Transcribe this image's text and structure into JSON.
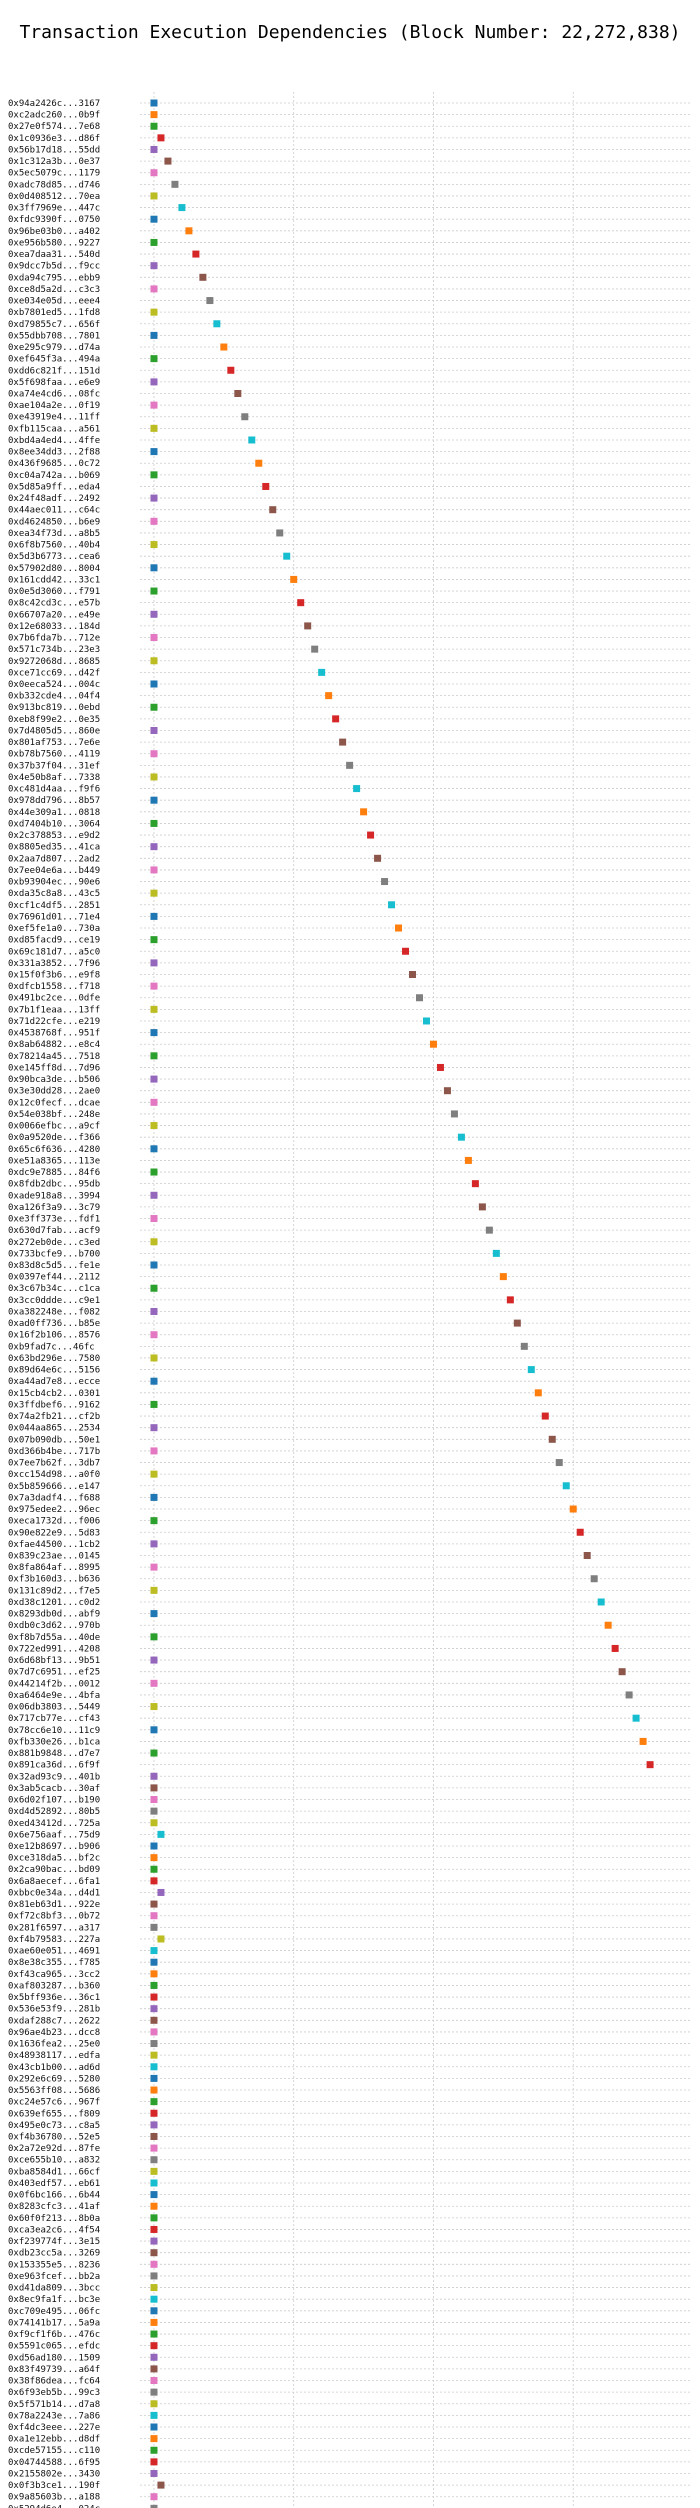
{
  "chart_data": {
    "type": "scatter",
    "title": "Transaction Execution Dependencies (Block Number: 22,272,838)",
    "xlabel": "",
    "ylabel": "",
    "xlim": [
      -2,
      77
    ],
    "xticks": [
      0,
      20,
      40,
      60
    ],
    "grid": true,
    "legend": "none",
    "colors": [
      "#1f77b4",
      "#ff7f0e",
      "#2ca02c",
      "#d62728",
      "#9467bd",
      "#8c564b",
      "#e377c2",
      "#7f7f7f",
      "#bcbd22",
      "#17becf"
    ],
    "transactions": [
      "0x94a2426c...3167",
      "0xc2adc260...0b9f",
      "0x27e0f574...7e68",
      "0x1c0936e3...d86f",
      "0x56b17d18...55dd",
      "0x1c312a3b...0e37",
      "0x5ec5079c...1179",
      "0xadc78d85...d746",
      "0x0d408512...70ea",
      "0x3ff7969e...447c",
      "0xfdc9390f...0750",
      "0x96be03b0...a402",
      "0xe956b580...9227",
      "0xea7daa31...540d",
      "0x9dcc7b5d...f9cc",
      "0xda94c795...ebb9",
      "0xce8d5a2d...c3c3",
      "0xe034e05d...eee4",
      "0xb7801ed5...1fd8",
      "0xd79855c7...656f",
      "0x55dbb708...7801",
      "0xe295c979...d74a",
      "0xef645f3a...494a",
      "0xdd6c821f...151d",
      "0x5f698faa...e6e9",
      "0xa74e4cd6...08fc",
      "0xae104a2e...0f19",
      "0xe43919e4...11ff",
      "0xfb115caa...a561",
      "0xbd4a4ed4...4ffe",
      "0x8ee34dd3...2f88",
      "0x436f9685...0c72",
      "0xc04a742a...b069",
      "0x5d85a9ff...eda4",
      "0x24f48adf...2492",
      "0x44aec011...c64c",
      "0xd4624850...b6e9",
      "0xea34f73d...a8b5",
      "0x6f8b7560...40b4",
      "0x5d3b6773...cea6",
      "0x57902d80...8004",
      "0x161cdd42...33c1",
      "0x0e5d3060...f791",
      "0x8c42cd3c...e57b",
      "0x66707a20...e49e",
      "0x12e68033...184d",
      "0x7b6fda7b...712e",
      "0x571c734b...23e3",
      "0x9272068d...8685",
      "0xce71cc69...d42f",
      "0x0eeca524...004c",
      "0xb332cde4...04f4",
      "0x913bc819...0ebd",
      "0xeb8f99e2...0e35",
      "0x7d4805d5...860e",
      "0x801af753...7e6e",
      "0xb78b7560...4119",
      "0x37b37f04...31ef",
      "0x4e50b8af...7338",
      "0xc481d4aa...f9f6",
      "0x978dd796...8b57",
      "0x44e309a1...0818",
      "0xd7404b10...3064",
      "0x2c378853...e9d2",
      "0x8805ed35...41ca",
      "0x2aa7d807...2ad2",
      "0x7ee04e6a...b449",
      "0xb93904ec...90e6",
      "0xda35c8a8...43c5",
      "0xcf1c4df5...2851",
      "0x76961d01...71e4",
      "0xef5fe1a0...730a",
      "0xd85facd9...ce19",
      "0x69c181d7...a5c0",
      "0x331a3852...7f96",
      "0x15f0f3b6...e9f8",
      "0xdfcb1558...f718",
      "0x491bc2ce...0dfe",
      "0x7b1f1eaa...13ff",
      "0x71d22cfe...e219",
      "0x4538768f...951f",
      "0x8ab64882...e8c4",
      "0x78214a45...7518",
      "0xe145ff8d...7d96",
      "0x90bca3de...b506",
      "0x3e30dd28...2ae0",
      "0x12c0fecf...dcae",
      "0x54e038bf...248e",
      "0x0066efbc...a9cf",
      "0x0a9520de...f366",
      "0x65c6f636...4280",
      "0xe51a8365...113e",
      "0xdc9e7885...84f6",
      "0x8fdb2dbc...95db",
      "0xade918a8...3994",
      "0xa126f3a9...3c79",
      "0xe3ff373e...fdf1",
      "0x630d7fab...acf9",
      "0x272eb0de...c3ed",
      "0x733bcfe9...b700",
      "0x83d8c5d5...fe1e",
      "0x0397ef44...2112",
      "0x3c67b34c...c1ca",
      "0x3cc0ddde...c9e1",
      "0xa382248e...f082",
      "0xad0ff736...b85e",
      "0x16f2b106...8576",
      "0xb9fad7c...46fc",
      "0x63bd296e...7580",
      "0x89d64e6c...5156",
      "0xa44ad7e8...ecce",
      "0x15cb4cb2...0301",
      "0x3ffdbef6...9162",
      "0x74a2fb21...cf2b",
      "0x044aa865...2534",
      "0x07b090db...50e1",
      "0xd366b4be...717b",
      "0x7ee7b62f...3db7",
      "0xcc154d98...a0f0",
      "0x5b859666...e147",
      "0x7a3dadf4...f688",
      "0x975edee2...96ec",
      "0xeca1732d...f006",
      "0x90e822e9...5d83",
      "0xfae44500...1cb2",
      "0x839c23ae...0145",
      "0x8fa864af...8995",
      "0xf3b160d3...b636",
      "0x131c89d2...f7e5",
      "0xd38c1201...c0d2",
      "0x8293db0d...abf9",
      "0xdb0c3d62...970b",
      "0xf8b7d55a...40de",
      "0x722ed991...4208",
      "0x6d68bf13...9b51",
      "0x7d7c6951...ef25",
      "0x44214f2b...0012",
      "0xa6464e9e...4bfa",
      "0x06db3803...5449",
      "0x717cb77e...cf43",
      "0x78cc6e10...11c9",
      "0xfb330e26...b1ca",
      "0x881b9848...d7e7",
      "0x891ca36d...6f9f",
      "0x32ad93c9...401b",
      "0x3ab5cacb...30af",
      "0x6d02f107...b190",
      "0xd4d52892...80b5",
      "0xed43412d...725a",
      "0x6e756aaf...75d9",
      "0xe12b8697...b906",
      "0xce318da5...bf2c",
      "0x2ca90bac...bd09",
      "0x6a8aecef...6fa1",
      "0xbbc0e34a...d4d1",
      "0x81eb63d1...922e",
      "0xf72c8bf3...0b72",
      "0x281f6597...a317",
      "0xf4b79583...227a",
      "0xae60e051...4691",
      "0x8e38c355...f785",
      "0xf43ca965...3cc2",
      "0xaf803287...b360",
      "0x5bff936e...36c1",
      "0x536e53f9...281b",
      "0xdaf288c7...2622",
      "0x96ae4b23...dcc8",
      "0x1636fea2...25e0",
      "0x48938117...edfa",
      "0x43cb1b00...ad6d",
      "0x292e6c69...5280",
      "0x5563ff08...5686",
      "0xc24e57c6...967f",
      "0x639ef655...f809",
      "0x495e0c73...c8a5",
      "0xf4b36780...52e5",
      "0x2a72e92d...87fe",
      "0xce655b10...a832",
      "0xba8584d1...66cf",
      "0x403edf57...eb61",
      "0x0f6bc166...6b44",
      "0x8283cfc3...41af",
      "0x60f0f213...8b0a",
      "0xca3ea2c6...4f54",
      "0xf239774f...3e15",
      "0xdb23cc5a...3269",
      "0x153355e5...8236",
      "0xe963fcef...bb2a",
      "0xd41da809...3bcc",
      "0x8ec9fa1f...bc3e",
      "0xc709e495...06fc",
      "0x74141b17...5a9a",
      "0xf9cf1f6b...476c",
      "0x5591c065...efdc",
      "0xd56ad180...1509",
      "0x83f49739...a64f",
      "0x38f86dea...fc64",
      "0x6f93eb5b...99c3",
      "0x5f571b14...d7a8",
      "0x78a2243e...7a86",
      "0xf4dc3eee...227e",
      "0xa1e12ebb...d8df",
      "0xcde57155...c110",
      "0x04744588...6f95",
      "0x2155802e...3430",
      "0x0f3b3ce1...190f",
      "0x9a85603b...a188",
      "0x5294d6e4...024c"
    ],
    "x": [
      0,
      0,
      0,
      1,
      0,
      2,
      0,
      3,
      0,
      4,
      0,
      5,
      0,
      6,
      0,
      7,
      0,
      8,
      0,
      9,
      0,
      10,
      0,
      11,
      0,
      12,
      0,
      13,
      0,
      14,
      0,
      15,
      0,
      16,
      0,
      17,
      0,
      18,
      0,
      19,
      0,
      20,
      0,
      21,
      0,
      22,
      0,
      23,
      0,
      24,
      0,
      25,
      0,
      26,
      0,
      27,
      0,
      28,
      0,
      29,
      0,
      30,
      0,
      31,
      0,
      32,
      0,
      33,
      0,
      34,
      0,
      35,
      0,
      36,
      0,
      37,
      0,
      38,
      0,
      39,
      0,
      40,
      0,
      41,
      0,
      42,
      0,
      43,
      0,
      44,
      0,
      45,
      0,
      46,
      0,
      47,
      0,
      48,
      0,
      49,
      0,
      50,
      0,
      51,
      0,
      52,
      0,
      53,
      0,
      54,
      0,
      55,
      0,
      56,
      0,
      57,
      0,
      58,
      0,
      59,
      0,
      60,
      0,
      61,
      0,
      62,
      0,
      63,
      0,
      64,
      0,
      65,
      0,
      66,
      0,
      67,
      0,
      68,
      0,
      69,
      0,
      70,
      0,
      71,
      0,
      0,
      0,
      0,
      0,
      1,
      0,
      0,
      0,
      0,
      1,
      0,
      0,
      0,
      1,
      0,
      0,
      0,
      0,
      0,
      0,
      0,
      0,
      0,
      0,
      0,
      0,
      0,
      0,
      0,
      0,
      0,
      0,
      0,
      0,
      0,
      0,
      0,
      0,
      0,
      0,
      0,
      0,
      0,
      0,
      0,
      0,
      0,
      0,
      0,
      0,
      0,
      0,
      0,
      0,
      0,
      0,
      0,
      0,
      0,
      0,
      1,
      0,
      0,
      1,
      0,
      0,
      2,
      0,
      0
    ]
  }
}
